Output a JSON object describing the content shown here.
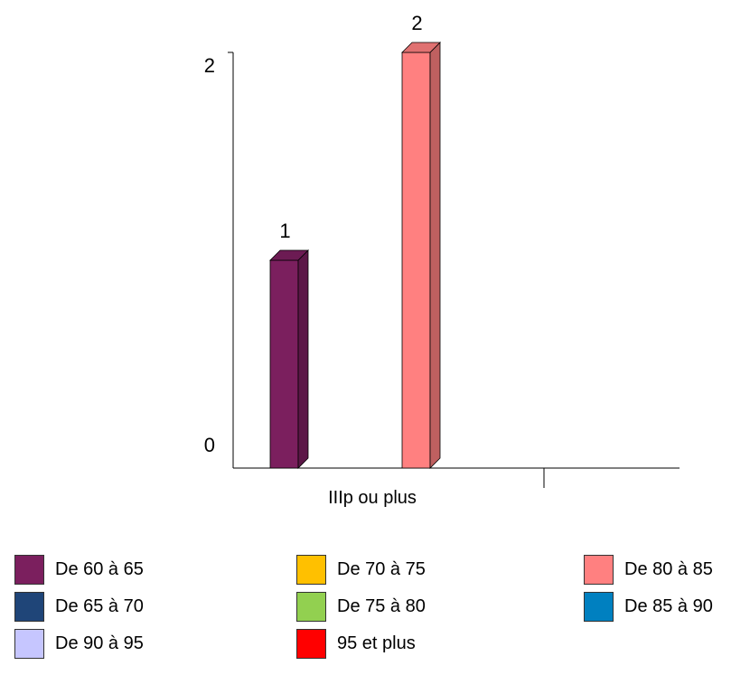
{
  "chart_data": {
    "type": "bar",
    "categories": [
      "IIIp ou plus"
    ],
    "series": [
      {
        "name": "De 60 à 65",
        "color": "#7b1f5e",
        "values": [
          1
        ]
      },
      {
        "name": "De 65 à 70",
        "color": "#1f4578",
        "values": [
          0
        ]
      },
      {
        "name": "De 70 à 75",
        "color": "#ffc000",
        "values": [
          0
        ]
      },
      {
        "name": "De 75 à 80",
        "color": "#92d050",
        "values": [
          0
        ]
      },
      {
        "name": "De 80 à 85",
        "color": "#ff8080",
        "values": [
          2
        ]
      },
      {
        "name": "De 85 à 90",
        "color": "#0080c0",
        "values": [
          0
        ]
      },
      {
        "name": "De 90 à 95",
        "color": "#c6c6ff",
        "values": [
          0
        ]
      },
      {
        "name": "95 et plus",
        "color": "#ff0000",
        "values": [
          0
        ]
      }
    ],
    "visible_bar_series": [
      0,
      4
    ],
    "data_labels": [
      "1",
      "2"
    ],
    "y_ticks": [
      "0",
      "2"
    ],
    "ylim": [
      0,
      2
    ],
    "title": "",
    "xlabel": "",
    "ylabel": "",
    "grid": false,
    "legend_position": "bottom"
  }
}
